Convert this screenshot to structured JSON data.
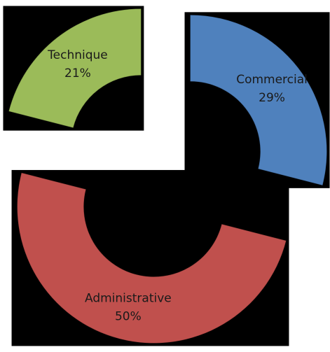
{
  "chart_data": {
    "type": "doughnut",
    "categories": [
      "Commercial",
      "Administrative",
      "Technique"
    ],
    "values": [
      29,
      50,
      21
    ],
    "value_labels": [
      "29%",
      "50%",
      "21%"
    ],
    "colors": [
      "#4f81bd",
      "#c0504d",
      "#9bbb59"
    ],
    "exploded": true
  }
}
